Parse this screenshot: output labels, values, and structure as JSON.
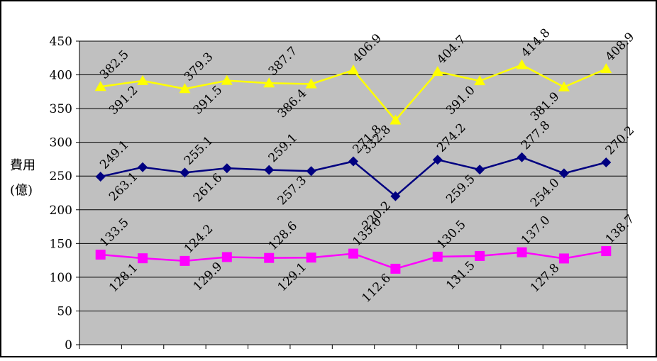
{
  "chart_data": {
    "type": "line",
    "ylabel_line1": "費用",
    "ylabel_line2": "(億)",
    "ylim": [
      0,
      450
    ],
    "yticks": [
      "0",
      "50",
      "100",
      "150",
      "200",
      "250",
      "300",
      "350",
      "400",
      "450"
    ],
    "grid": true,
    "legend": "none",
    "plot_background": "#c0c0c0",
    "series": [
      {
        "color": "#ffff00",
        "marker": "triangle",
        "values": [
          382.5,
          391.2,
          379.3,
          391.5,
          387.7,
          386.4,
          406.9,
          332.8,
          404.7,
          391.0,
          414.8,
          381.9,
          408.9
        ],
        "labels": [
          "382.5",
          "391.2",
          "379.3",
          "391.5",
          "387.7",
          "386.4",
          "406.9",
          "332.8",
          "404.7",
          "391.0",
          "414.8",
          "381.9",
          "408.9"
        ]
      },
      {
        "color": "#000080",
        "marker": "diamond",
        "values": [
          249.1,
          263.1,
          255.1,
          261.6,
          259.1,
          257.3,
          271.8,
          220.2,
          274.2,
          259.5,
          277.8,
          254.0,
          270.2
        ],
        "labels": [
          "249.1",
          "263.1",
          "255.1",
          "261.6",
          "259.1",
          "257.3",
          "271.8",
          "220.2",
          "274.2",
          "259.5",
          "277.8",
          "254.0",
          "270.2"
        ]
      },
      {
        "color": "#ff00ff",
        "marker": "square",
        "values": [
          133.5,
          128.1,
          124.2,
          129.9,
          128.6,
          129.1,
          135.0,
          112.6,
          130.5,
          131.5,
          137.0,
          127.8,
          138.7
        ],
        "labels": [
          "133.5",
          "128.1",
          "124.2",
          "129.9",
          "128.6",
          "129.1",
          "135.0",
          "112.6",
          "130.5",
          "131.5",
          "137.0",
          "127.8",
          "138.7"
        ]
      }
    ]
  }
}
